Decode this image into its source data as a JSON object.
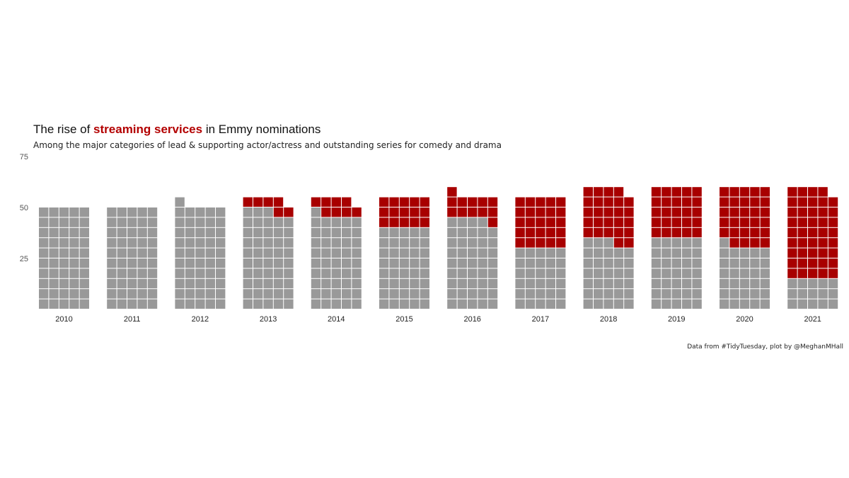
{
  "title": {
    "prefix": "The rise of ",
    "highlight": "streaming services",
    "suffix": " in Emmy nominations"
  },
  "subtitle": "Among the major categories of lead & supporting actor/actress and outstanding series for comedy and drama",
  "caption": "Data from #TidyTuesday, plot by @MeghanMHall",
  "colors": {
    "streaming": "#a80000",
    "other": "#999999",
    "title_highlight": "#b30000"
  },
  "chart_data": {
    "type": "waffle",
    "y_ticks": [
      25,
      50,
      75
    ],
    "ylim": [
      0,
      75
    ],
    "columns_per_year": 5,
    "units_per_square": 1,
    "categories": [
      "2010",
      "2011",
      "2012",
      "2013",
      "2014",
      "2015",
      "2016",
      "2017",
      "2018",
      "2019",
      "2020",
      "2021"
    ],
    "series": [
      {
        "key": "other",
        "values": [
          50,
          50,
          51,
          48,
          46,
          40,
          44,
          30,
          33,
          35,
          31,
          15
        ]
      },
      {
        "key": "streaming",
        "values": [
          0,
          0,
          0,
          6,
          8,
          15,
          12,
          25,
          26,
          25,
          29,
          44
        ]
      }
    ]
  }
}
